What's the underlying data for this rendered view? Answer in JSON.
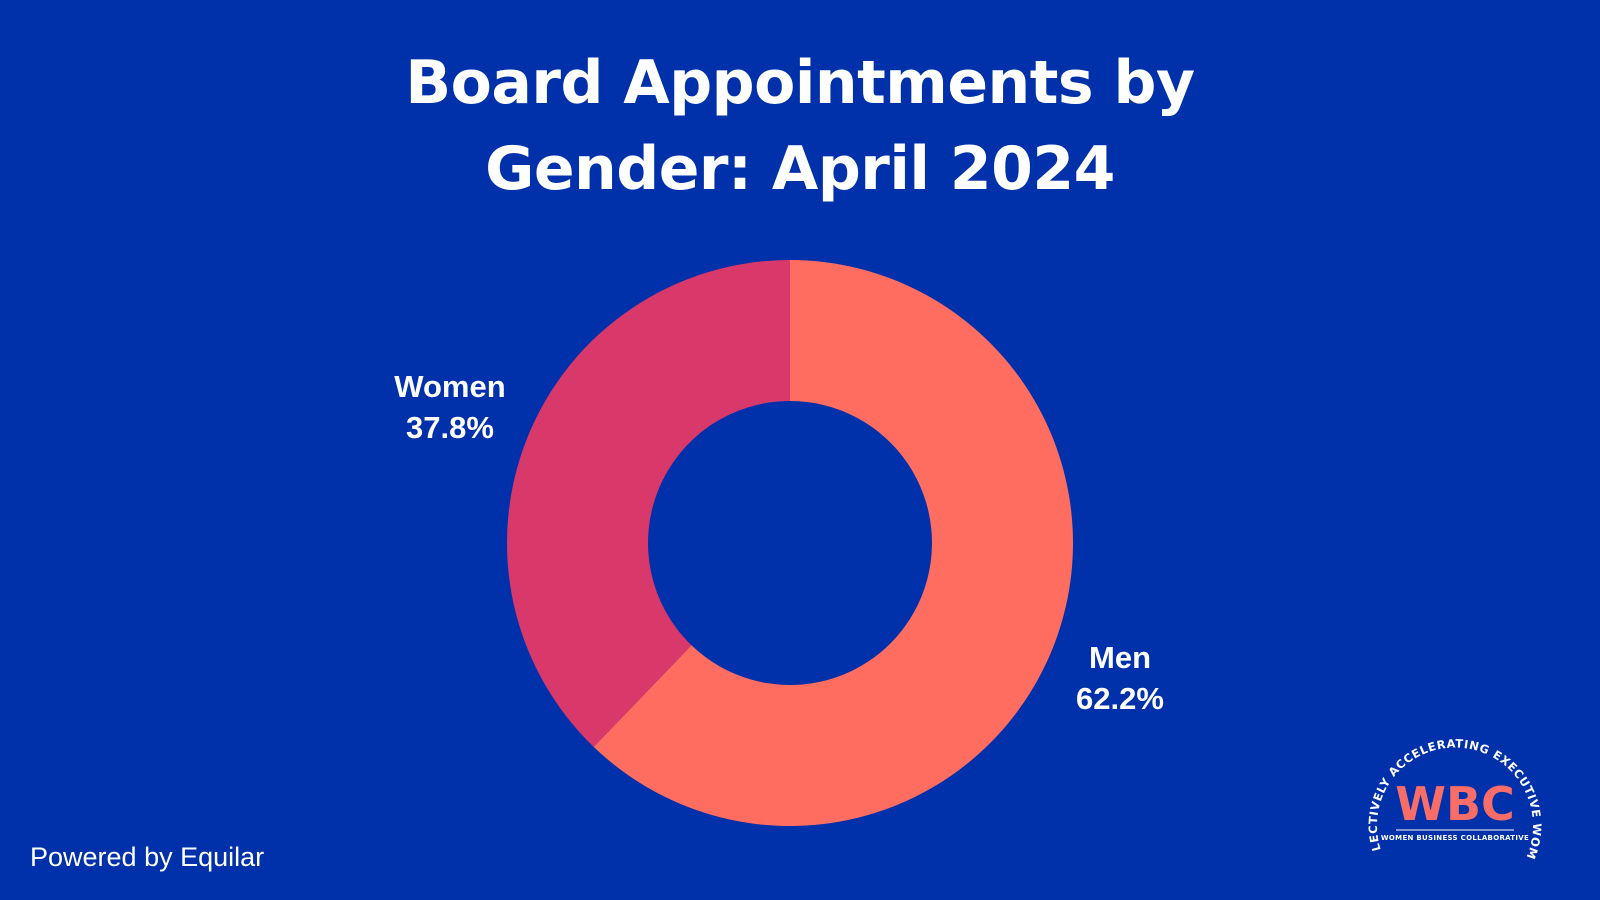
{
  "colors": {
    "background": "#0130ab",
    "text": "#ffffff",
    "men": "#ff6d60",
    "women": "#d9386a",
    "logo_accent": "#f86d68"
  },
  "chart_data": {
    "type": "pie",
    "donut": true,
    "title_lines": [
      "Board Appointments by",
      "Gender: April 2024"
    ],
    "slices": [
      {
        "label": "Men",
        "value": 62.2,
        "display": "62.2%",
        "color": "#ff6d60"
      },
      {
        "label": "Women",
        "value": 37.8,
        "display": "37.8%",
        "color": "#d9386a"
      }
    ],
    "start": "12 o'clock",
    "direction": "clockwise",
    "legend": "none"
  },
  "footer": {
    "credit": "Powered by Equilar"
  },
  "logo": {
    "arc_text": "COLLECTIVELY ACCELERATING EXECUTIVE WOMEN",
    "letters": "WBC",
    "subtitle": "WOMEN BUSINESS COLLABORATIVE",
    "icon": "wbc-logo-icon"
  }
}
